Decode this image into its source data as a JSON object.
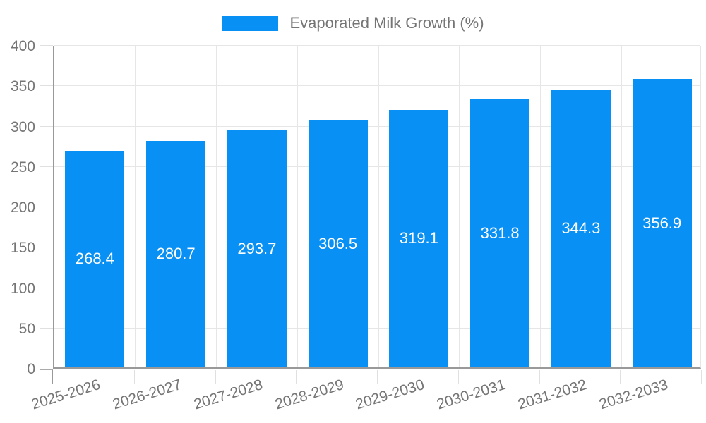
{
  "legend": {
    "label": "Evaporated Milk Growth (%)",
    "swatch_color": "#0890f5"
  },
  "chart_data": {
    "type": "bar",
    "title": "Evaporated Milk Growth (%)",
    "categories": [
      "2025-2026",
      "2026-2027",
      "2027-2028",
      "2028-2029",
      "2029-2030",
      "2030-2031",
      "2031-2032",
      "2032-2033"
    ],
    "values": [
      268.4,
      280.7,
      293.7,
      306.5,
      319.1,
      331.8,
      344.3,
      356.9
    ],
    "value_labels": [
      "268.4",
      "280.7",
      "293.7",
      "306.5",
      "319.1",
      "331.8",
      "344.3",
      "356.9"
    ],
    "xlabel": "",
    "ylabel": "",
    "ylim": [
      0,
      400
    ],
    "yticks": [
      0,
      50,
      100,
      150,
      200,
      250,
      300,
      350,
      400
    ],
    "grid": true,
    "legend_position": "top",
    "bar_color": "#0890f5",
    "value_label_color": "#ffffff",
    "axis_color": "#999999",
    "grid_color": "#e6e6e6",
    "text_color": "#757575"
  }
}
